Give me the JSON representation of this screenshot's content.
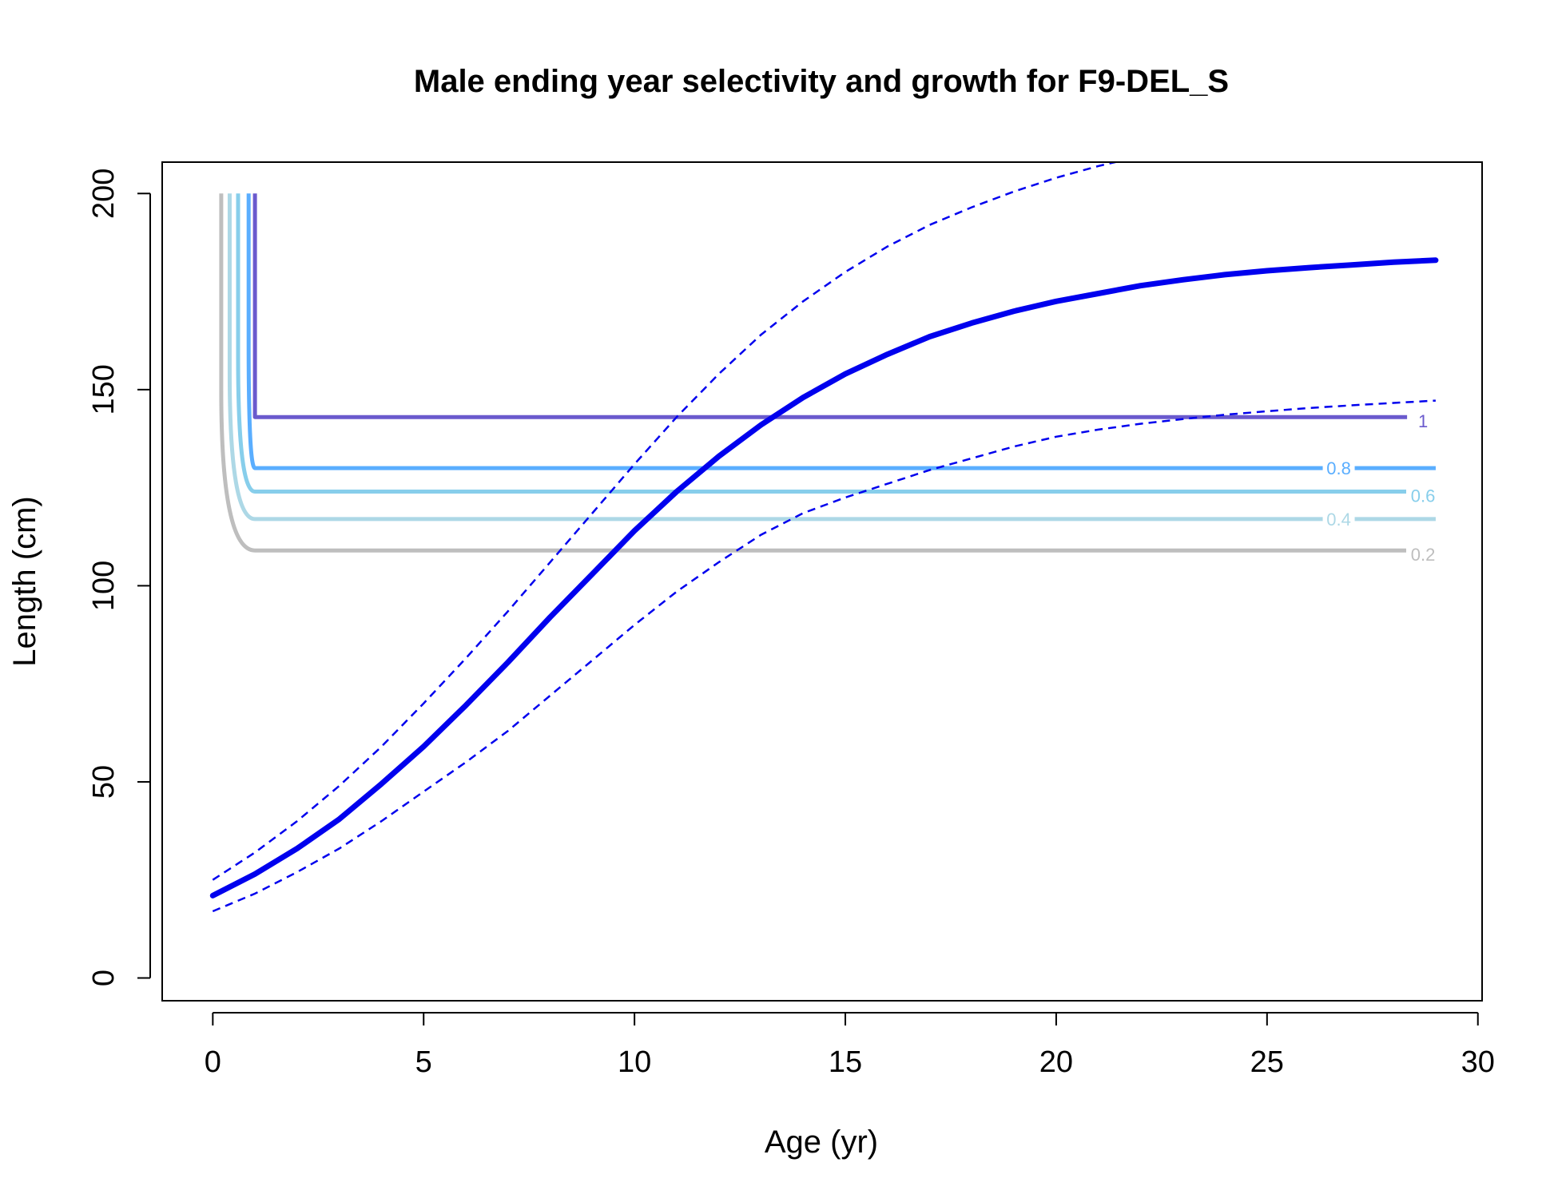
{
  "chart_data": {
    "type": "line",
    "title": "Male ending year selectivity and growth for F9-DEL_S",
    "xlabel": "Age (yr)",
    "ylabel": "Length (cm)",
    "xlim": [
      -1.2,
      30.1
    ],
    "ylim": [
      -5.8,
      208
    ],
    "xticks": [
      "0",
      "5",
      "10",
      "15",
      "20",
      "25",
      "30"
    ],
    "xtick_values": [
      0,
      5,
      10,
      15,
      20,
      25,
      30
    ],
    "yticks": [
      "0",
      "50",
      "100",
      "150",
      "200"
    ],
    "ytick_values": [
      0,
      50,
      100,
      150,
      200
    ],
    "grid": false,
    "growth": {
      "mean": {
        "color": "#0000ee",
        "x": [
          0,
          1,
          2,
          3,
          4,
          5,
          6,
          7,
          8,
          9,
          10,
          11,
          12,
          13,
          14,
          15,
          16,
          17,
          18,
          19,
          20,
          21,
          22,
          23,
          24,
          25,
          26,
          27,
          28,
          29
        ],
        "y": [
          21,
          26.5,
          33,
          40.5,
          49.5,
          59,
          69.5,
          80.5,
          92,
          103,
          114,
          124,
          133,
          141,
          148,
          154,
          159,
          163.5,
          167,
          170,
          172.5,
          174.5,
          176.5,
          178,
          179.3,
          180.3,
          181.1,
          181.8,
          182.5,
          183
        ]
      },
      "upper": {
        "color": "#0000ee",
        "x": [
          0,
          1,
          2,
          3,
          4,
          5,
          6,
          7,
          8,
          9,
          10,
          11,
          12,
          13,
          14,
          15,
          16,
          17,
          18,
          19,
          20,
          21,
          21.8
        ],
        "y": [
          25,
          32,
          40,
          49,
          59,
          70,
          81.5,
          93.5,
          106,
          118.5,
          131,
          143,
          154,
          164,
          172.5,
          180,
          186.5,
          192,
          196.5,
          200.5,
          204,
          207,
          209
        ]
      },
      "lower": {
        "color": "#0000ee",
        "x": [
          0,
          1,
          2,
          3,
          4,
          5,
          6,
          7,
          8,
          9,
          10,
          11,
          12,
          13,
          14,
          15,
          16,
          17,
          18,
          19,
          20,
          21,
          22,
          23,
          24,
          25,
          26,
          27,
          28,
          29
        ],
        "y": [
          17,
          21.5,
          27,
          33,
          40,
          47.5,
          55,
          63,
          72,
          81,
          90,
          98.5,
          106,
          113,
          118.5,
          122.5,
          126,
          129.5,
          132.5,
          135.5,
          138,
          139.8,
          141.3,
          142.5,
          143.6,
          144.5,
          145.3,
          146,
          146.6,
          147.2
        ]
      }
    },
    "contours": [
      {
        "level": "1",
        "color": "#6a5acd",
        "stem_x": 1.0,
        "y": 143,
        "x_end": 28.4,
        "label_x": 28.7,
        "label_y": 142
      },
      {
        "level": "0.8",
        "color": "#5aaeff",
        "stem_x": 0.85,
        "y": 130,
        "x_end": 29.0,
        "label_x": 26.7,
        "label_y": 130
      },
      {
        "level": "0.6",
        "color": "#87ceeb",
        "stem_x": 0.6,
        "y": 124,
        "x_end": 28.3,
        "label_x": 28.7,
        "label_y": 123
      },
      {
        "level": "0.4",
        "color": "#add8e6",
        "stem_x": 0.4,
        "y": 117,
        "x_end": 29.0,
        "label_x": 26.7,
        "label_y": 117
      },
      {
        "level": "0.2",
        "color": "#bebebe",
        "stem_x": 0.2,
        "y": 109,
        "x_end": 28.3,
        "label_x": 28.7,
        "label_y": 108
      }
    ]
  }
}
